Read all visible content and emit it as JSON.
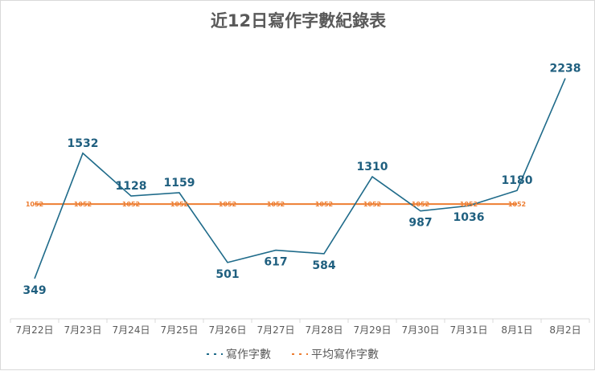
{
  "chart_data": {
    "type": "line",
    "title": "近12日寫作字數紀錄表",
    "categories": [
      "7月22日",
      "7月23日",
      "7月24日",
      "7月25日",
      "7月26日",
      "7月27日",
      "7月28日",
      "7月29日",
      "7月30日",
      "7月31日",
      "8月1日",
      "8月2日"
    ],
    "series": [
      {
        "name": "寫作字數",
        "color": "#1f6b8a",
        "dash": "solid",
        "values": [
          349,
          1532,
          1128,
          1159,
          501,
          617,
          584,
          1310,
          987,
          1036,
          1180,
          2238
        ]
      },
      {
        "name": "平均寫作字數",
        "color": "#ed7d31",
        "dash": "solid",
        "values": [
          1052,
          1052,
          1052,
          1052,
          1052,
          1052,
          1052,
          1052,
          1052,
          1052,
          1052,
          null
        ]
      }
    ],
    "ylim": [
      0,
      2500
    ],
    "y_axis_visible": false,
    "grid": false,
    "data_labels": true,
    "legend": "bottom"
  }
}
